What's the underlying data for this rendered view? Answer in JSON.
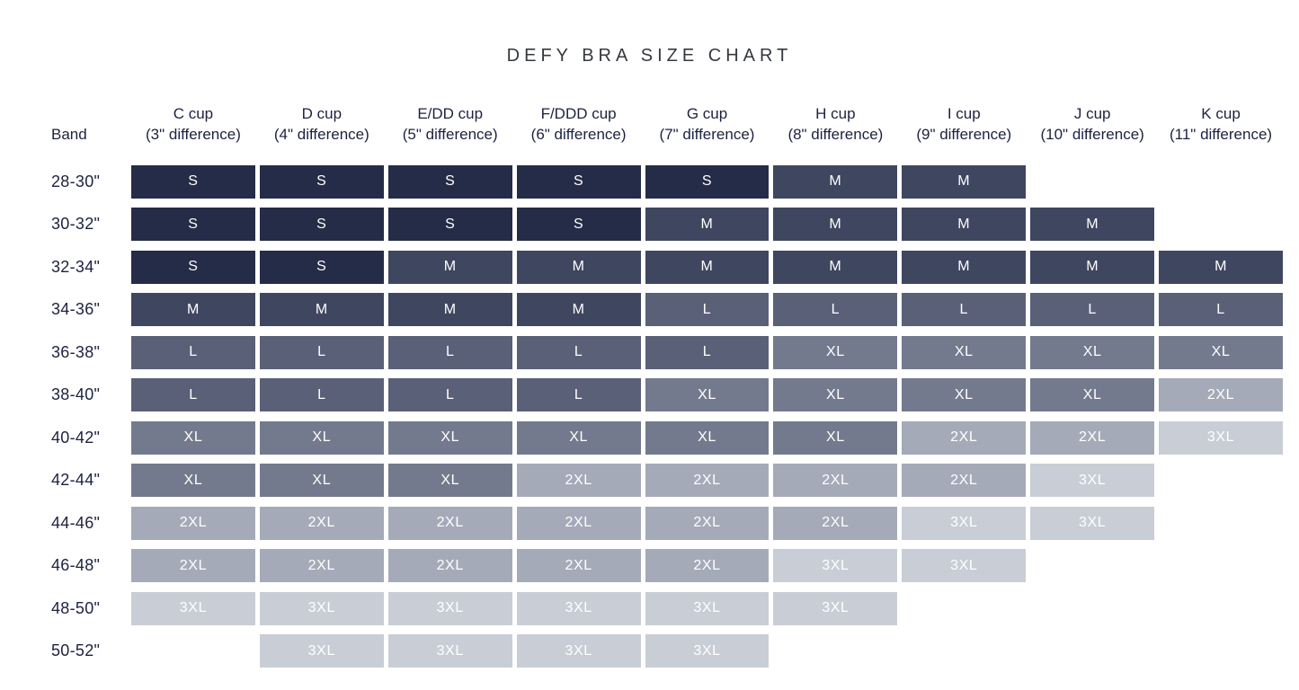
{
  "page": {
    "title": "DEFY BRA SIZE CHART"
  },
  "chart_data": {
    "type": "table",
    "title": "DEFY BRA SIZE CHART",
    "row_header_label": "Band",
    "columns": [
      {
        "cup": "C cup",
        "difference": "(3\" difference)"
      },
      {
        "cup": "D cup",
        "difference": "(4\" difference)"
      },
      {
        "cup": "E/DD cup",
        "difference": "(5\" difference)"
      },
      {
        "cup": "F/DDD cup",
        "difference": "(6\" difference)"
      },
      {
        "cup": "G cup",
        "difference": "(7\" difference)"
      },
      {
        "cup": "H cup",
        "difference": "(8\" difference)"
      },
      {
        "cup": "I cup",
        "difference": "(9\" difference)"
      },
      {
        "cup": "J cup",
        "difference": "(10\" difference)"
      },
      {
        "cup": "K cup",
        "difference": "(11\" difference)"
      }
    ],
    "rows": [
      {
        "band": "28-30\"",
        "sizes": [
          "S",
          "S",
          "S",
          "S",
          "S",
          "M",
          "M",
          null,
          null
        ]
      },
      {
        "band": "30-32\"",
        "sizes": [
          "S",
          "S",
          "S",
          "S",
          "M",
          "M",
          "M",
          "M",
          null
        ]
      },
      {
        "band": "32-34\"",
        "sizes": [
          "S",
          "S",
          "M",
          "M",
          "M",
          "M",
          "M",
          "M",
          "M"
        ]
      },
      {
        "band": "34-36\"",
        "sizes": [
          "M",
          "M",
          "M",
          "M",
          "L",
          "L",
          "L",
          "L",
          "L"
        ]
      },
      {
        "band": "36-38\"",
        "sizes": [
          "L",
          "L",
          "L",
          "L",
          "L",
          "XL",
          "XL",
          "XL",
          "XL"
        ]
      },
      {
        "band": "38-40\"",
        "sizes": [
          "L",
          "L",
          "L",
          "L",
          "XL",
          "XL",
          "XL",
          "XL",
          "2XL"
        ]
      },
      {
        "band": "40-42\"",
        "sizes": [
          "XL",
          "XL",
          "XL",
          "XL",
          "XL",
          "XL",
          "2XL",
          "2XL",
          "3XL"
        ]
      },
      {
        "band": "42-44\"",
        "sizes": [
          "XL",
          "XL",
          "XL",
          "2XL",
          "2XL",
          "2XL",
          "2XL",
          "3XL",
          null
        ]
      },
      {
        "band": "44-46\"",
        "sizes": [
          "2XL",
          "2XL",
          "2XL",
          "2XL",
          "2XL",
          "2XL",
          "3XL",
          "3XL",
          null
        ]
      },
      {
        "band": "46-48\"",
        "sizes": [
          "2XL",
          "2XL",
          "2XL",
          "2XL",
          "2XL",
          "3XL",
          "3XL",
          null,
          null
        ]
      },
      {
        "band": "48-50\"",
        "sizes": [
          "3XL",
          "3XL",
          "3XL",
          "3XL",
          "3XL",
          "3XL",
          null,
          null,
          null
        ]
      },
      {
        "band": "50-52\"",
        "sizes": [
          null,
          "3XL",
          "3XL",
          "3XL",
          "3XL",
          null,
          null,
          null,
          null
        ]
      }
    ],
    "size_colors": {
      "S": "#252C47",
      "M": "#3F4660",
      "L": "#5A6078",
      "XL": "#747A8E",
      "2XL": "#A5AAB8",
      "3XL": "#C9CDD6"
    },
    "cell_text_color": "#FFFFFF",
    "header_text_color": "#1C2240",
    "title_color": "#35383D"
  }
}
